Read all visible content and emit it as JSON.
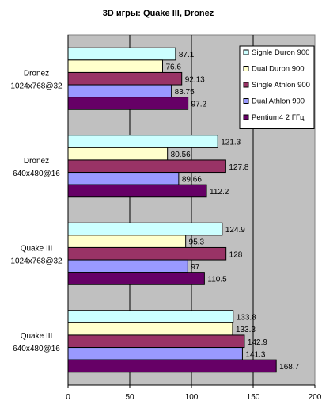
{
  "chart_data": {
    "type": "bar",
    "orientation": "horizontal",
    "title": "3D игры: Quake III, Dronez",
    "xlim": [
      0,
      200
    ],
    "xticks": [
      "0",
      "50",
      "100",
      "150",
      "200"
    ],
    "grid": true,
    "legend_position": "top-right",
    "categories": [
      [
        "Dronez",
        "1024x768@32"
      ],
      [
        "Dronez",
        "640x480@16"
      ],
      [
        "Quake III",
        "1024x768@32"
      ],
      [
        "Quake III",
        "640x480@16"
      ]
    ],
    "series": [
      {
        "name": "Signle Duron 900",
        "color": "#ccffff",
        "values": [
          87.1,
          121.3,
          124.9,
          133.8
        ],
        "labels": [
          "87.1",
          "121.3",
          "124.9",
          "133.8"
        ]
      },
      {
        "name": "Dual Duron 900",
        "color": "#ffffcc",
        "values": [
          76.6,
          80.56,
          95.3,
          133.3
        ],
        "labels": [
          "76.6",
          "80.56",
          "95.3",
          "133.3"
        ]
      },
      {
        "name": "Single Athlon 900",
        "color": "#993366",
        "values": [
          92.13,
          127.8,
          128,
          142.9
        ],
        "labels": [
          "92.13",
          "127.8",
          "128",
          "142.9"
        ]
      },
      {
        "name": "Dual Athlon 900",
        "color": "#9999ff",
        "values": [
          83.75,
          89.66,
          97,
          141.3
        ],
        "labels": [
          "83.75",
          "89.66",
          "97",
          "141.3"
        ]
      },
      {
        "name": "Pentium4 2 ГГц",
        "color": "#660066",
        "values": [
          97.2,
          112.2,
          110.5,
          168.7
        ],
        "labels": [
          "97.2",
          "112.2",
          "110.5",
          "168.7"
        ]
      }
    ],
    "plot_background": "#c0c0c0"
  }
}
